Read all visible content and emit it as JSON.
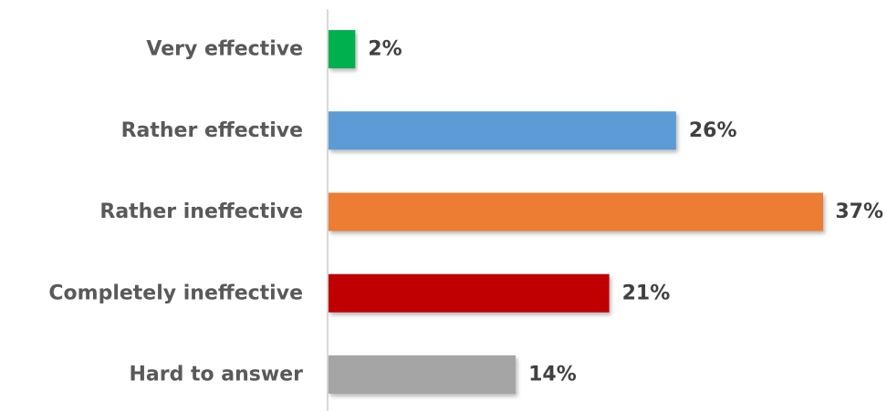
{
  "chart_data": {
    "type": "bar",
    "orientation": "horizontal",
    "categories": [
      "Very effective",
      "Rather effective",
      "Rather ineffective",
      "Completely ineffective",
      "Hard to answer"
    ],
    "values": [
      2,
      26,
      37,
      21,
      14
    ],
    "value_labels": [
      "2%",
      "26%",
      "37%",
      "21%",
      "14%"
    ],
    "unit": "%",
    "colors": [
      "#00b050",
      "#5b9bd5",
      "#ed7d31",
      "#c00000",
      "#a5a5a5"
    ],
    "xlim": [
      0,
      37
    ],
    "grid": false,
    "legend": "none",
    "title": "",
    "xlabel": "",
    "ylabel": ""
  }
}
